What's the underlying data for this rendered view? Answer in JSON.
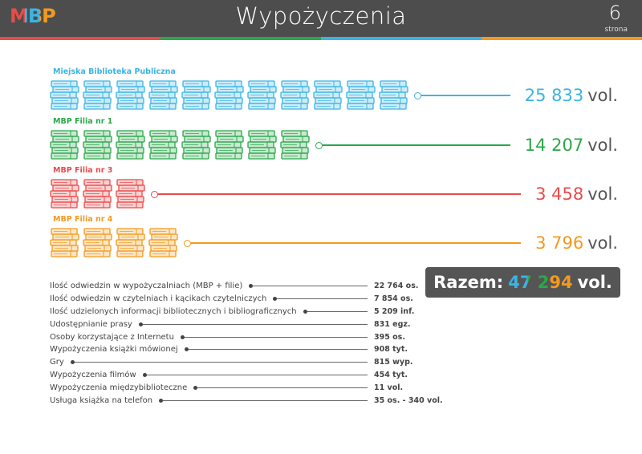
{
  "header": {
    "logo": "MBP",
    "title": "Wypożyczenia",
    "page_number": "6",
    "page_label": "strona"
  },
  "libraries": [
    {
      "name": "Miejska Biblioteka Publiczna",
      "value": "25 833",
      "unit": "vol.",
      "color": "#3bb4e5"
    },
    {
      "name": "MBP Filia nr 1",
      "value": "14 207",
      "unit": "vol.",
      "color": "#2aa84a"
    },
    {
      "name": "MBP Filia nr 3",
      "value": "3 458",
      "unit": "vol.",
      "color": "#e94b4b"
    },
    {
      "name": "MBP Filia nr 4",
      "value": "3 796",
      "unit": "vol.",
      "color": "#f39a1e"
    }
  ],
  "total": {
    "label": "Razem:",
    "value": "47 294",
    "unit": "vol."
  },
  "stats": [
    {
      "label": "Ilość odwiedzin w wypożyczalniach (MBP + filie)",
      "value": "22 764 os."
    },
    {
      "label": "Ilość odwiedzin w czytelniach i kącikach czytelniczych",
      "value": "7 854 os."
    },
    {
      "label": "Ilość udzielonych informacji bibliotecznych i bibliograficznych",
      "value": "5 209 inf."
    },
    {
      "label": "Udostępnianie prasy",
      "value": "831 egz."
    },
    {
      "label": "Osoby korzystające z Internetu",
      "value": "395 os."
    },
    {
      "label": "Wypożyczenia książki mówionej",
      "value": "908 tyt."
    },
    {
      "label": "Gry",
      "value": "815 wyp."
    },
    {
      "label": "Wypożyczenia filmów",
      "value": "454 tyt."
    },
    {
      "label": "Wypożyczenia międzybiblioteczne",
      "value": "11 vol."
    },
    {
      "label": "Usługa książka na telefon",
      "value": "35 os. - 340 vol."
    }
  ]
}
